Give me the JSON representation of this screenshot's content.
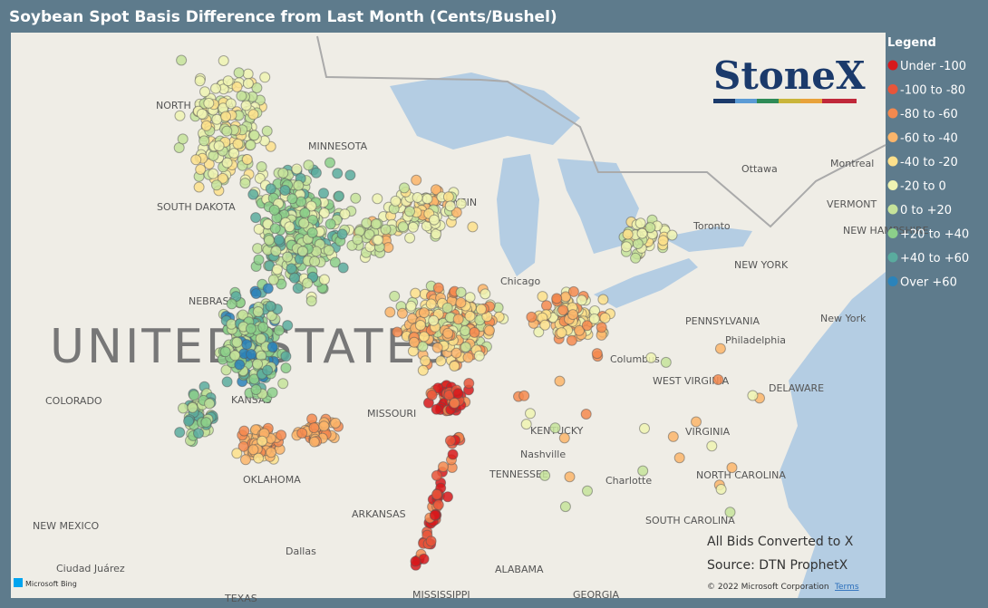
{
  "title": "Soybean Spot Basis Difference from Last Month (Cents/Bushel)",
  "logo": "StoneX",
  "legend": {
    "title": "Legend",
    "items": [
      {
        "label": "Under -100",
        "color": "#d7191c"
      },
      {
        "label": "-100 to -80",
        "color": "#e8553a"
      },
      {
        "label": "-80 to -60",
        "color": "#f4894f"
      },
      {
        "label": "-60 to -40",
        "color": "#fbb56a"
      },
      {
        "label": "-40 to -20",
        "color": "#fde08b"
      },
      {
        "label": "-20 to 0",
        "color": "#eef3b2"
      },
      {
        "label": "0 to +20",
        "color": "#c6e39a"
      },
      {
        "label": "+20 to +40",
        "color": "#8ccf8a"
      },
      {
        "label": "+40 to +60",
        "color": "#5aab9e"
      },
      {
        "label": "Over +60",
        "color": "#2b83ba"
      }
    ]
  },
  "map_labels": [
    "UNITED STATES",
    "NORTH DAKOTA",
    "MINNESOTA",
    "SOUTH DAKOTA",
    "NEBRASKA",
    "COLORADO",
    "KANSAS",
    "MISSOURI",
    "OKLAHOMA",
    "ARKANSAS",
    "NEW MEXICO",
    "TEXAS",
    "Dallas",
    "Ciudad Juárez",
    "MISSISSIPPI",
    "ALABAMA",
    "GEORGIA",
    "TENNESSEE",
    "Nashville",
    "KENTUCKY",
    "WEST VIRGINIA",
    "VIRGINIA",
    "NORTH CAROLINA",
    "Charlotte",
    "SOUTH CAROLINA",
    "PENNSYLVANIA",
    "Philadelphia",
    "NEW YORK",
    "New York",
    "Columbus",
    "Chicago",
    "WISCONSIN",
    "Toronto",
    "Ottawa",
    "Montreal",
    "VERMONT",
    "NEW HAMPSHIRE",
    "DELAWARE"
  ],
  "notes": [
    "All Bids Converted to X",
    "Source: DTN ProphetX"
  ],
  "attribution": {
    "provider": "Microsoft Bing",
    "copyright": "© 2022 Microsoft Corporation",
    "terms": "Terms"
  }
}
